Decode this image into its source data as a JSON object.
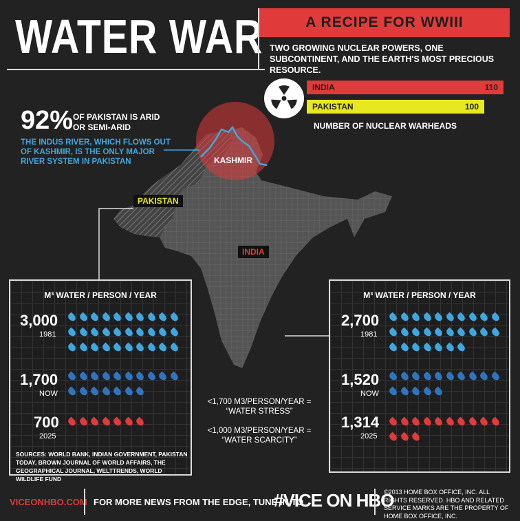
{
  "header": {
    "title": "WATER WAR",
    "tagline": "A RECIPE FOR WWIII",
    "subtitle": "TWO GROWING NUCLEAR POWERS, ONE SUBCONTINENT, AND THE EARTH'S MOST PRECIOUS RESOURCE."
  },
  "warheads": {
    "icon": "radiation-icon",
    "india_label": "INDIA",
    "india_value": "110",
    "pakistan_label": "PAKISTAN",
    "pakistan_value": "100",
    "caption": "NUMBER OF NUCLEAR WARHEADS"
  },
  "stats": {
    "pct": "92%",
    "pct_text": "OF PAKISTAN IS ARID OR SEMI-ARID",
    "indus": "THE INDUS RIVER, WHICH FLOWS OUT OF KASHMIR, IS THE ONLY MAJOR RIVER SYSTEM IN PAKISTAN"
  },
  "map": {
    "kashmir": "KASHMIR",
    "pakistan": "PAKISTAN",
    "india": "INDIA"
  },
  "pakistan_panel": {
    "title": "M³ WATER / PERSON / YEAR",
    "rows": [
      {
        "value": "3,000",
        "year": "1981",
        "drops": 30,
        "color": "#3fa7e0"
      },
      {
        "value": "1,700",
        "year": "NOW",
        "drops": 17,
        "color": "#2f74c0"
      },
      {
        "value": "700",
        "year": "2025",
        "drops": 7,
        "color": "#e03a3a"
      }
    ],
    "sources": "SOURCES: WORLD BANK, INDIAN GOVERNMENT, PAKISTAN TODAY, BROWN JOURNAL OF WORLD AFFAIRS, THE GEOGRAPHICAL JOURNAL, WELTTRENDS, WORLD WILDLIFE FUND"
  },
  "india_panel": {
    "title": "M³ WATER / PERSON / YEAR",
    "rows": [
      {
        "value": "2,700",
        "year": "1981",
        "drops": 27,
        "color": "#3fa7e0"
      },
      {
        "value": "1,520",
        "year": "NOW",
        "drops": 15,
        "color": "#2f74c0"
      },
      {
        "value": "1,314",
        "year": "2025",
        "drops": 13,
        "color": "#e03a3a"
      }
    ]
  },
  "definitions": {
    "stress": "<1,700 M3/PERSON/YEAR = “WATER STRESS”",
    "scarcity": "<1,000 M3/PERSON/YEAR = “WATER SCARCITY”"
  },
  "footer": {
    "site": "VICEONHBO.COM",
    "tune": "FOR MORE NEWS FROM THE EDGE, TUNE IN TO",
    "hashtag": "#VICE ON HBO",
    "copyright": "©2013 HOME BOX OFFICE, INC. ALL RIGHTS RESERVED. HBO AND RELATED SERVICE MARKS ARE THE PROPERTY OF HOME BOX OFFICE, INC."
  },
  "colors": {
    "red": "#e03a3a",
    "yellow": "#e8e81e",
    "blue": "#3fa7e0",
    "dark_blue": "#2f74c0"
  }
}
